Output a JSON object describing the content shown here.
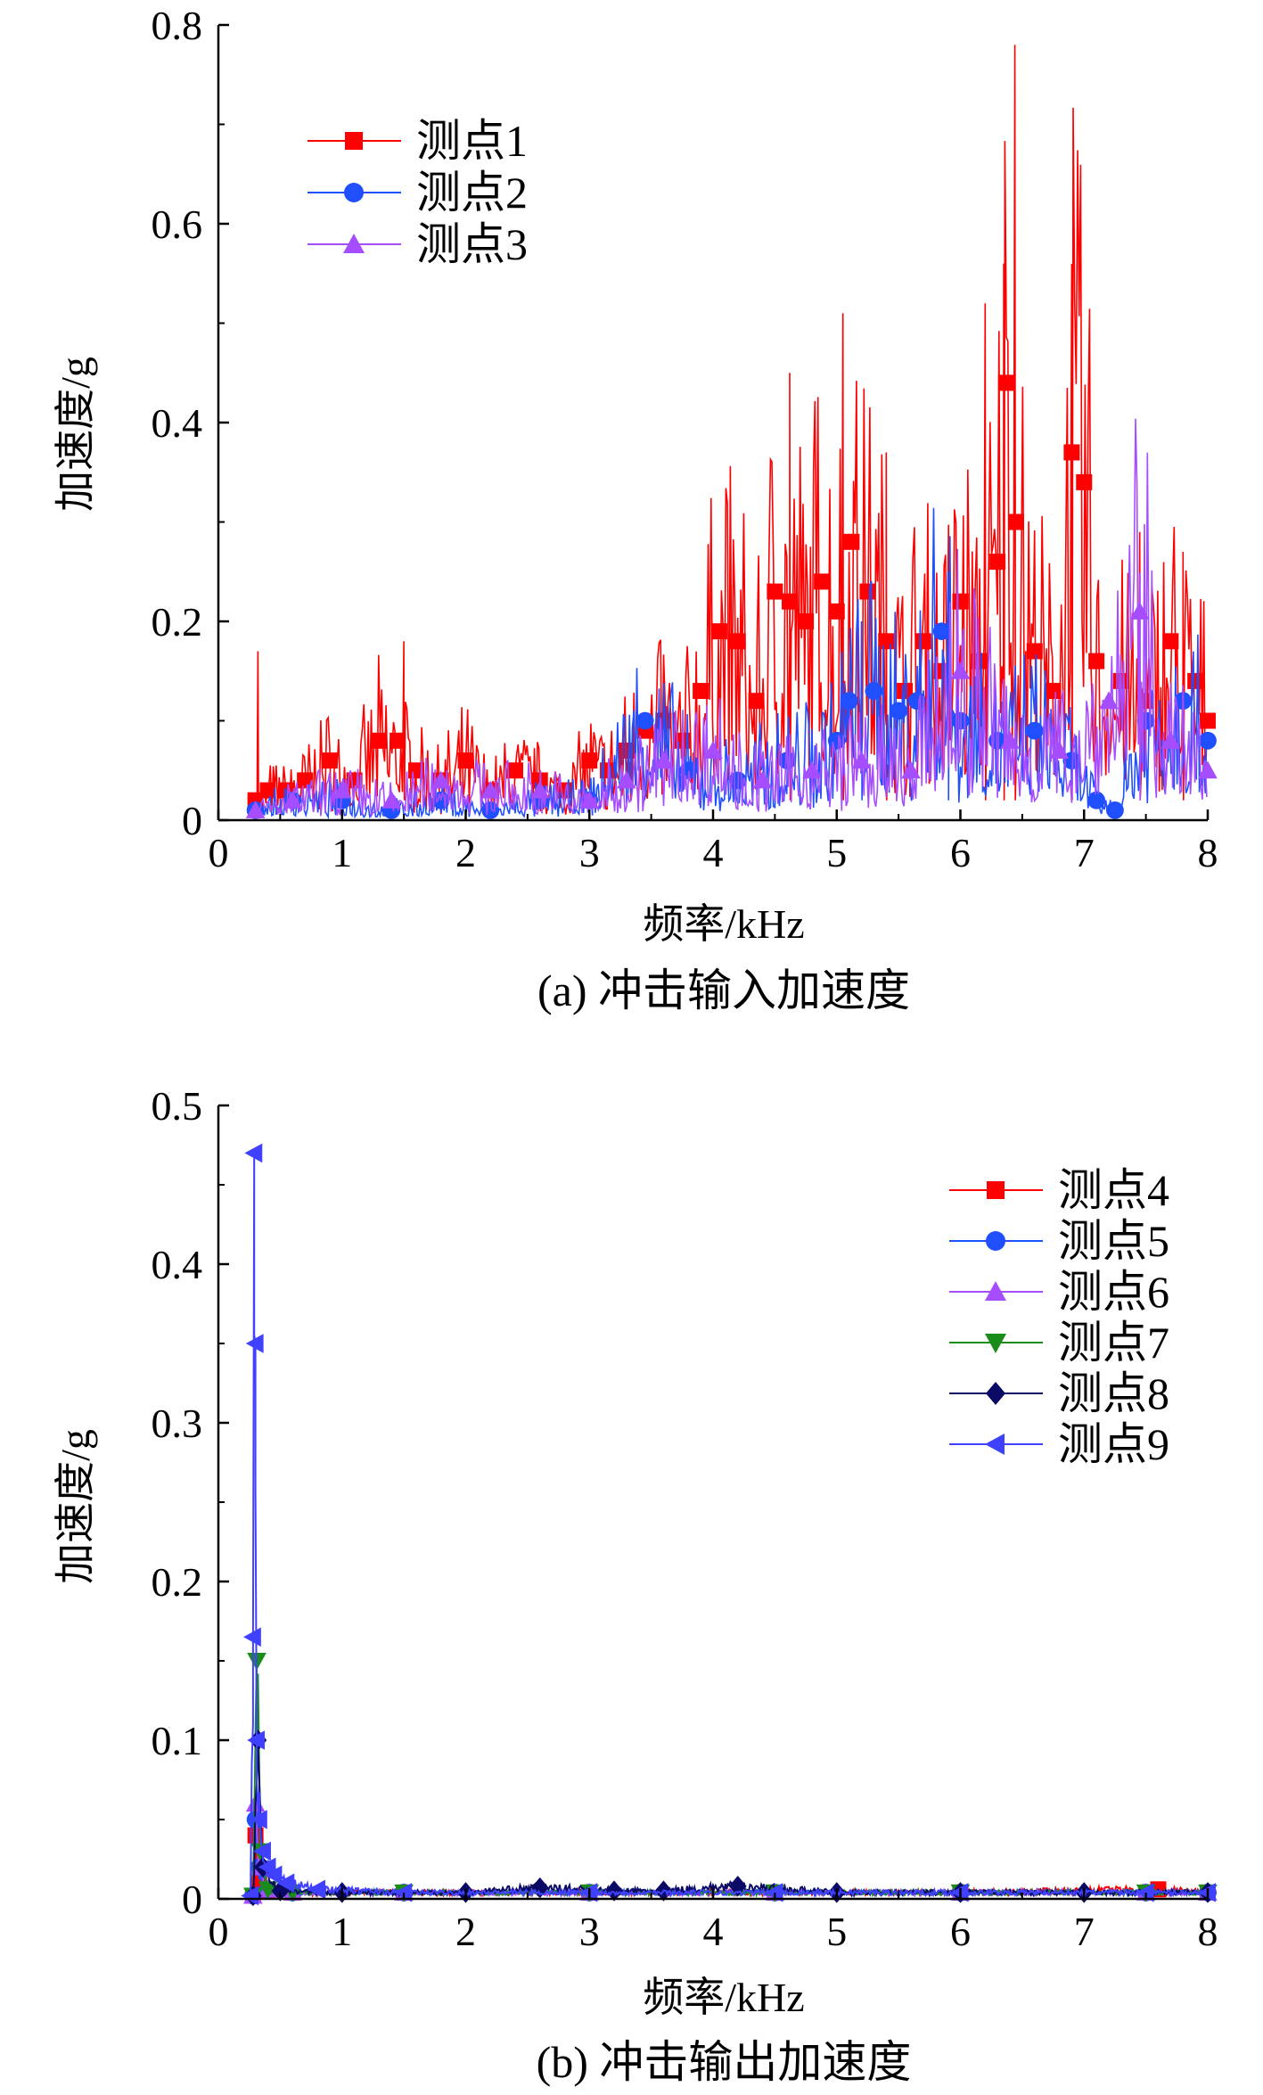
{
  "chart_data": [
    {
      "type": "line",
      "caption": "(a) 冲击输入加速度",
      "xlabel": "频率/kHz",
      "ylabel": "加速度/g",
      "xlim": [
        0,
        8
      ],
      "ylim": [
        0,
        0.8
      ],
      "xticks": [
        "0",
        "1",
        "2",
        "3",
        "4",
        "5",
        "6",
        "7",
        "8"
      ],
      "yticks": [
        "0",
        "0.2",
        "0.4",
        "0.6",
        "0.8"
      ],
      "legend_position": "top-left",
      "series": [
        {
          "name": "测点1",
          "color": "#ff0000",
          "marker": "square",
          "x": [
            0.3,
            0.4,
            0.55,
            0.7,
            0.9,
            1.1,
            1.3,
            1.45,
            1.6,
            1.8,
            2.0,
            2.2,
            2.4,
            2.6,
            2.8,
            3.0,
            3.15,
            3.3,
            3.45,
            3.6,
            3.75,
            3.9,
            4.05,
            4.2,
            4.35,
            4.5,
            4.62,
            4.75,
            4.88,
            5.0,
            5.12,
            5.25,
            5.4,
            5.55,
            5.7,
            5.85,
            6.0,
            6.15,
            6.3,
            6.37,
            6.45,
            6.6,
            6.75,
            6.9,
            7.0,
            7.1,
            7.3,
            7.5,
            7.7,
            7.9,
            8.0
          ],
          "y": [
            0.02,
            0.03,
            0.03,
            0.04,
            0.06,
            0.04,
            0.08,
            0.08,
            0.05,
            0.04,
            0.06,
            0.03,
            0.05,
            0.04,
            0.03,
            0.06,
            0.05,
            0.07,
            0.09,
            0.1,
            0.08,
            0.13,
            0.19,
            0.18,
            0.12,
            0.23,
            0.22,
            0.2,
            0.24,
            0.21,
            0.28,
            0.23,
            0.18,
            0.13,
            0.18,
            0.15,
            0.22,
            0.16,
            0.26,
            0.44,
            0.3,
            0.17,
            0.13,
            0.37,
            0.34,
            0.16,
            0.14,
            0.12,
            0.18,
            0.14,
            0.1
          ],
          "peaks": [
            [
              0.32,
              0.17
            ],
            [
              1.5,
              0.18
            ],
            [
              4.62,
              0.45
            ],
            [
              5.05,
              0.51
            ],
            [
              5.4,
              0.37
            ],
            [
              6.2,
              0.52
            ],
            [
              6.35,
              0.56
            ],
            [
              6.44,
              0.78
            ],
            [
              6.9,
              0.42
            ],
            [
              7.45,
              0.29
            ],
            [
              7.8,
              0.27
            ]
          ]
        },
        {
          "name": "测点2",
          "color": "#1f4fff",
          "marker": "circle",
          "x": [
            0.3,
            0.6,
            1.0,
            1.4,
            1.8,
            2.2,
            2.6,
            3.0,
            3.45,
            3.8,
            4.2,
            4.6,
            5.0,
            5.1,
            5.3,
            5.5,
            5.65,
            5.85,
            6.0,
            6.3,
            6.6,
            6.9,
            7.1,
            7.25,
            7.5,
            7.8,
            8.0
          ],
          "y": [
            0.01,
            0.02,
            0.02,
            0.01,
            0.02,
            0.01,
            0.02,
            0.02,
            0.1,
            0.05,
            0.04,
            0.06,
            0.08,
            0.12,
            0.13,
            0.11,
            0.12,
            0.19,
            0.1,
            0.08,
            0.09,
            0.06,
            0.02,
            0.01,
            0.1,
            0.12,
            0.08
          ],
          "peaks": [
            [
              5.2,
              0.2
            ],
            [
              5.9,
              0.25
            ]
          ]
        },
        {
          "name": "测点3",
          "color": "#a64dff",
          "marker": "triangle-up",
          "x": [
            0.3,
            0.6,
            1.0,
            1.4,
            1.8,
            2.2,
            2.6,
            3.0,
            3.3,
            3.6,
            4.0,
            4.4,
            4.8,
            5.2,
            5.6,
            6.0,
            6.4,
            6.8,
            7.2,
            7.45,
            7.7,
            8.0
          ],
          "y": [
            0.01,
            0.02,
            0.03,
            0.02,
            0.04,
            0.03,
            0.03,
            0.02,
            0.04,
            0.06,
            0.07,
            0.04,
            0.05,
            0.06,
            0.05,
            0.15,
            0.08,
            0.07,
            0.12,
            0.21,
            0.08,
            0.05
          ],
          "peaks": [
            [
              7.45,
              0.22
            ]
          ]
        }
      ]
    },
    {
      "type": "line",
      "caption": "(b) 冲击输出加速度",
      "xlabel": "频率/kHz",
      "ylabel": "加速度/g",
      "xlim": [
        0,
        8
      ],
      "ylim": [
        0,
        0.5
      ],
      "xticks": [
        "0",
        "1",
        "2",
        "3",
        "4",
        "5",
        "6",
        "7",
        "8"
      ],
      "yticks": [
        "0",
        "0.1",
        "0.2",
        "0.3",
        "0.4",
        "0.5"
      ],
      "legend_position": "top-right",
      "series": [
        {
          "name": "测点4",
          "color": "#ff0000",
          "marker": "square",
          "x": [
            0.28,
            0.3,
            0.33,
            0.4,
            0.6,
            1.5,
            3.0,
            4.5,
            6.0,
            7.6,
            8.0
          ],
          "y": [
            0.002,
            0.04,
            0.01,
            0.005,
            0.004,
            0.004,
            0.004,
            0.004,
            0.004,
            0.006,
            0.004
          ]
        },
        {
          "name": "测点5",
          "color": "#1f4fff",
          "marker": "circle",
          "x": [
            0.28,
            0.3,
            0.33,
            0.4,
            0.6,
            1.5,
            3.0,
            4.5,
            6.0,
            7.5,
            8.0
          ],
          "y": [
            0.002,
            0.05,
            0.02,
            0.006,
            0.004,
            0.004,
            0.004,
            0.004,
            0.004,
            0.004,
            0.004
          ]
        },
        {
          "name": "测点6",
          "color": "#a64dff",
          "marker": "triangle-up",
          "x": [
            0.28,
            0.3,
            0.33,
            0.4,
            0.6,
            1.5,
            3.0,
            4.5,
            6.0,
            7.5,
            8.0
          ],
          "y": [
            0.002,
            0.06,
            0.02,
            0.006,
            0.004,
            0.004,
            0.004,
            0.004,
            0.004,
            0.004,
            0.004
          ]
        },
        {
          "name": "测点7",
          "color": "#1a8c1a",
          "marker": "triangle-down",
          "x": [
            0.28,
            0.31,
            0.34,
            0.4,
            0.6,
            1.5,
            3.0,
            4.5,
            6.0,
            7.5,
            8.0
          ],
          "y": [
            0.002,
            0.15,
            0.03,
            0.006,
            0.004,
            0.004,
            0.004,
            0.004,
            0.004,
            0.004,
            0.004
          ]
        },
        {
          "name": "测点8",
          "color": "#0a0a66",
          "marker": "diamond",
          "x": [
            0.28,
            0.32,
            0.36,
            0.5,
            1.0,
            2.0,
            2.6,
            3.2,
            3.6,
            4.2,
            5.0,
            6.0,
            7.0,
            8.0
          ],
          "y": [
            0.002,
            0.1,
            0.02,
            0.005,
            0.004,
            0.004,
            0.007,
            0.005,
            0.005,
            0.008,
            0.004,
            0.004,
            0.004,
            0.004
          ]
        },
        {
          "name": "测点9",
          "color": "#4040ff",
          "marker": "triangle-left",
          "x": [
            0.26,
            0.28,
            0.29,
            0.3,
            0.31,
            0.33,
            0.36,
            0.4,
            0.45,
            0.55,
            0.8,
            1.5,
            3.0,
            4.5,
            6.0,
            7.5,
            8.0
          ],
          "y": [
            0.002,
            0.165,
            0.47,
            0.35,
            0.1,
            0.05,
            0.03,
            0.02,
            0.015,
            0.01,
            0.006,
            0.004,
            0.004,
            0.004,
            0.004,
            0.004,
            0.004
          ]
        }
      ]
    }
  ]
}
